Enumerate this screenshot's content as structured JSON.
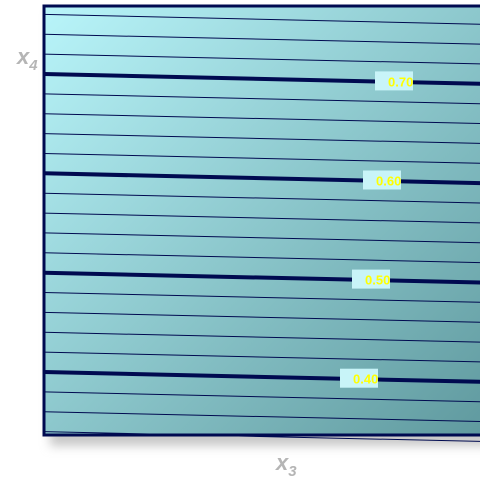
{
  "chart_data": {
    "type": "contour",
    "title": "",
    "xlabel": {
      "base": "x",
      "sub": "3"
    },
    "ylabel": {
      "base": "x",
      "sub": "4"
    },
    "x_ticks_shown": false,
    "y_ticks_shown": false,
    "grid": false,
    "legend": "none",
    "colors": {
      "frame": "#000a50",
      "contour_line": "#000a50",
      "contour_label_text": "#ffff00",
      "contour_label_box": "#c8f4f8",
      "fill_top_left": "#b9f5fa",
      "fill_bottom_right": "#5f999e",
      "shadow": "#c8c8c8"
    },
    "levels": [
      {
        "value": 0.7,
        "label": "0.70",
        "major": true
      },
      {
        "value": 0.6,
        "label": "0.60",
        "major": true
      },
      {
        "value": 0.5,
        "label": "0.50",
        "major": true
      },
      {
        "value": 0.4,
        "label": "0.40",
        "major": true
      }
    ],
    "minor_lines_per_interval": 4
  }
}
